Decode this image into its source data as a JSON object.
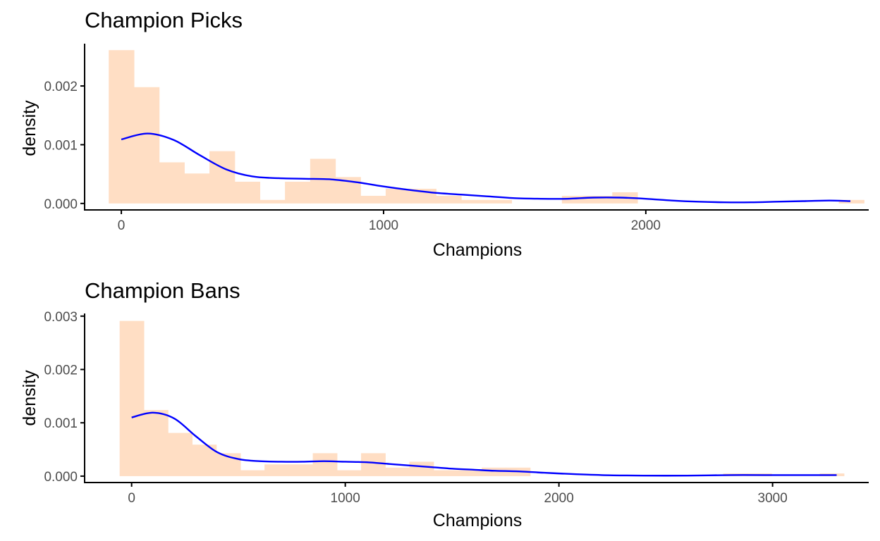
{
  "colors": {
    "bar_fill": "#ffdec4",
    "density_line": "#0000ff",
    "axis": "#000000",
    "tick_text": "#4d4d4d"
  },
  "chart_data": [
    {
      "type": "bar",
      "title": "Champion Picks",
      "xlabel": "Champions",
      "ylabel": "density",
      "grid": false,
      "legend": "none",
      "xlim": [
        -140,
        2850
      ],
      "ylim": [
        -0.00011,
        0.00272
      ],
      "x_ticks": [
        0,
        1000,
        2000
      ],
      "x_tick_labels": [
        "0",
        "1000",
        "2000"
      ],
      "y_ticks": [
        0,
        0.001,
        0.002
      ],
      "y_tick_labels": [
        "0.000",
        "0.001",
        "0.002"
      ],
      "bin_width": 96,
      "bin_start": -48,
      "histogram_densities": [
        0.00261,
        0.00198,
        0.0007,
        0.00051,
        0.00089,
        0.00037,
        6e-05,
        0.00037,
        0.00076,
        0.00045,
        0.00013,
        0.00025,
        0.00025,
        0.00013,
        6e-05,
        6e-05,
        0.0,
        0.0,
        0.00013,
        0.00013,
        0.00019,
        0.0,
        0.0,
        0.0,
        0.0,
        0.0,
        0.0,
        0.0,
        0.0,
        6e-05
      ],
      "density_curve": {
        "x": [
          0,
          100,
          200,
          300,
          400,
          500,
          600,
          700,
          800,
          900,
          1000,
          1100,
          1200,
          1300,
          1400,
          1500,
          1600,
          1700,
          1800,
          1900,
          2000,
          2100,
          2200,
          2300,
          2400,
          2500,
          2600,
          2700,
          2780
        ],
        "y": [
          0.00109,
          0.00119,
          0.00108,
          0.00082,
          0.00058,
          0.00046,
          0.00043,
          0.00042,
          0.00041,
          0.00036,
          0.00029,
          0.00023,
          0.00018,
          0.00015,
          0.00012,
          9e-05,
          8e-05,
          8e-05,
          0.0001,
          0.0001,
          8e-05,
          5e-05,
          3e-05,
          2e-05,
          2e-05,
          3e-05,
          4e-05,
          5e-05,
          4e-05
        ]
      }
    },
    {
      "type": "bar",
      "title": "Champion Bans",
      "xlabel": "Champions",
      "ylabel": "density",
      "grid": false,
      "legend": "none",
      "xlim": [
        -220,
        3450
      ],
      "ylim": [
        -0.00012,
        0.00305
      ],
      "x_ticks": [
        0,
        1000,
        2000,
        3000
      ],
      "x_tick_labels": [
        "0",
        "1000",
        "2000",
        "3000"
      ],
      "y_ticks": [
        0,
        0.001,
        0.002,
        0.003
      ],
      "y_tick_labels": [
        "0.000",
        "0.001",
        "0.002",
        "0.003"
      ],
      "bin_width": 113,
      "bin_start": -56,
      "histogram_densities": [
        0.00291,
        0.00124,
        0.00081,
        0.00059,
        0.00043,
        0.00011,
        0.00022,
        0.00022,
        0.00043,
        0.00011,
        0.00043,
        0.00016,
        0.00027,
        0.00011,
        0.00011,
        0.00016,
        0.00016,
        0.0,
        0.0,
        0.0,
        0.0,
        0.0,
        0.0,
        0.0,
        0.0,
        5e-05,
        5e-05,
        0.0,
        0.0,
        5e-05
      ],
      "density_curve": {
        "x": [
          0,
          100,
          200,
          300,
          400,
          500,
          600,
          700,
          800,
          900,
          1000,
          1100,
          1200,
          1300,
          1400,
          1500,
          1600,
          1700,
          1800,
          1900,
          2000,
          2200,
          2400,
          2600,
          2800,
          3000,
          3200,
          3300
        ],
        "y": [
          0.0011,
          0.00119,
          0.00108,
          0.00075,
          0.00045,
          0.00032,
          0.00028,
          0.00027,
          0.00027,
          0.00028,
          0.00027,
          0.00026,
          0.00023,
          0.0002,
          0.00017,
          0.00014,
          0.00012,
          0.0001,
          9e-05,
          7e-05,
          5e-05,
          2e-05,
          1e-05,
          1e-05,
          2e-05,
          2e-05,
          2e-05,
          2e-05
        ]
      }
    }
  ]
}
